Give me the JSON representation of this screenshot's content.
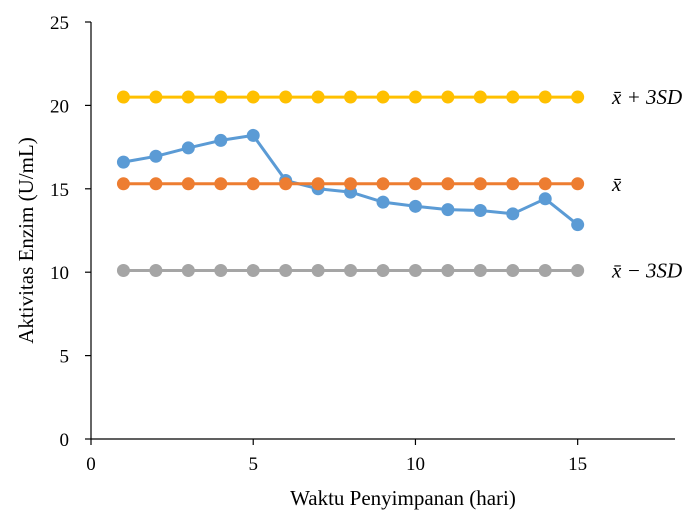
{
  "chart_data": {
    "type": "line",
    "title": "",
    "xlabel": "Waktu Penyimpanan (hari)",
    "ylabel": "Aktivitas Enzim (U/mL)",
    "xlim": [
      0,
      18
    ],
    "ylim": [
      0,
      25
    ],
    "xticks": [
      0,
      5,
      10,
      15
    ],
    "yticks": [
      0,
      5,
      10,
      15,
      20,
      25
    ],
    "grid": false,
    "legend": "none",
    "x": [
      1,
      2,
      3,
      4,
      5,
      6,
      7,
      8,
      9,
      10,
      11,
      12,
      13,
      14,
      15
    ],
    "series": [
      {
        "label": "x̄ + 3SD",
        "color": "#FFC000",
        "values": [
          20.5,
          20.5,
          20.5,
          20.5,
          20.5,
          20.5,
          20.5,
          20.5,
          20.5,
          20.5,
          20.5,
          20.5,
          20.5,
          20.5,
          20.5
        ]
      },
      {
        "label": "",
        "color": "#5B9BD5",
        "values": [
          16.6,
          16.95,
          17.45,
          17.9,
          18.2,
          15.5,
          15.0,
          14.8,
          14.2,
          13.95,
          13.75,
          13.7,
          13.5,
          14.4,
          12.85
        ]
      },
      {
        "label": "x̄",
        "color": "#ED7D31",
        "values": [
          15.3,
          15.3,
          15.3,
          15.3,
          15.3,
          15.3,
          15.3,
          15.3,
          15.3,
          15.3,
          15.3,
          15.3,
          15.3,
          15.3,
          15.3
        ]
      },
      {
        "label": "x̄ − 3SD",
        "color": "#A5A5A5",
        "values": [
          10.1,
          10.1,
          10.1,
          10.1,
          10.1,
          10.1,
          10.1,
          10.1,
          10.1,
          10.1,
          10.1,
          10.1,
          10.1,
          10.1,
          10.1
        ]
      }
    ]
  }
}
